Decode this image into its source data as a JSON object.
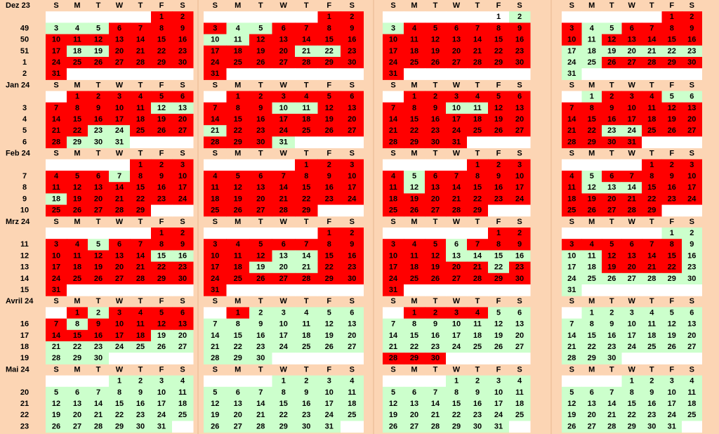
{
  "weekdays": [
    "S",
    "M",
    "T",
    "W",
    "T",
    "F",
    "S"
  ],
  "palette": {
    "r": "#ff0000",
    "g": "#ccffcc",
    "w": "#ffffff"
  },
  "months": [
    {
      "label": "Dez 23",
      "weeks": [
        {
          "week": null,
          "days": [
            null,
            null,
            null,
            null,
            null,
            1,
            2
          ],
          "fills": [
            "wwwwwrr",
            "wwwwwrr",
            "wwwwwwg",
            "wwwwwrr"
          ]
        },
        {
          "week": 49,
          "days": [
            3,
            4,
            5,
            6,
            7,
            8,
            9
          ],
          "fills": [
            "gggrrrr",
            "rggrrrr",
            "grrrrrr",
            "rggrrrr"
          ]
        },
        {
          "week": 50,
          "days": [
            10,
            11,
            12,
            13,
            14,
            15,
            16
          ],
          "fills": [
            "rrrrrrr",
            "ggrrrrr",
            "rrrrrrr",
            "rgrrrrr"
          ]
        },
        {
          "week": 51,
          "days": [
            17,
            18,
            19,
            20,
            21,
            22,
            23
          ],
          "fills": [
            "rggrrrr",
            "rrrrggr",
            "rrrrrrr",
            "ggggggg"
          ]
        },
        {
          "week": 1,
          "days": [
            24,
            25,
            26,
            27,
            28,
            29,
            30
          ],
          "fills": [
            "rrrrrrr",
            "rrrrrrr",
            "rrrrrrr",
            "ggrrrrr"
          ]
        },
        {
          "week": 2,
          "days": [
            31,
            null,
            null,
            null,
            null,
            null,
            null
          ],
          "fills": [
            "rwwwwww",
            "rwwwwww",
            "rwwwwww",
            "gwwwwww"
          ]
        }
      ]
    },
    {
      "label": "Jan 24",
      "weeks": [
        {
          "week": null,
          "days": [
            null,
            1,
            2,
            3,
            4,
            5,
            6
          ],
          "fills": [
            "wrrrrrr",
            "wrrrrrr",
            "wrrrrrr",
            "wgrrrgg"
          ]
        },
        {
          "week": 3,
          "days": [
            7,
            8,
            9,
            10,
            11,
            12,
            13
          ],
          "fills": [
            "rrrrrgg",
            "rrrggrr",
            "rrrggrr",
            "rrrrrrr"
          ]
        },
        {
          "week": 4,
          "days": [
            14,
            15,
            16,
            17,
            18,
            19,
            20
          ],
          "fills": [
            "rrrrrrr",
            "rrrrrrr",
            "rrrrrrr",
            "rrrrrrr"
          ]
        },
        {
          "week": 5,
          "days": [
            21,
            22,
            23,
            24,
            25,
            26,
            27
          ],
          "fills": [
            "rrggrrr",
            "grrrrrr",
            "rrrrrrr",
            "rrggrrr"
          ]
        },
        {
          "week": 6,
          "days": [
            28,
            29,
            30,
            31,
            null,
            null,
            null
          ],
          "fills": [
            "rgggwww",
            "rrrgwww",
            "rrrrwww",
            "rrrrwww"
          ]
        }
      ]
    },
    {
      "label": "Feb 24",
      "weeks": [
        {
          "week": null,
          "days": [
            null,
            null,
            null,
            null,
            1,
            2,
            3
          ],
          "fills": [
            "wwwwrrr",
            "wwwwrrr",
            "wwwwrrr",
            "wwwwrrr"
          ]
        },
        {
          "week": 7,
          "days": [
            4,
            5,
            6,
            7,
            8,
            9,
            10
          ],
          "fills": [
            "rrrgrrr",
            "rrrrrrr",
            "rgrrrrr",
            "rgrrrrr"
          ]
        },
        {
          "week": 8,
          "days": [
            11,
            12,
            13,
            14,
            15,
            16,
            17
          ],
          "fills": [
            "rrrrrrr",
            "rrrrrrr",
            "rgrrrrr",
            "rgggrrr"
          ]
        },
        {
          "week": 9,
          "days": [
            18,
            19,
            20,
            21,
            22,
            23,
            24
          ],
          "fills": [
            "grrrrrr",
            "rrrrrrr",
            "rrrrrrr",
            "rrrrrrr"
          ]
        },
        {
          "week": 10,
          "days": [
            25,
            26,
            27,
            28,
            29,
            null,
            null
          ],
          "fills": [
            "rrrrrww",
            "rrrrrww",
            "rrrrrww",
            "rrrrrww"
          ]
        }
      ]
    },
    {
      "label": "Mrz 24",
      "weeks": [
        {
          "week": null,
          "days": [
            null,
            null,
            null,
            null,
            null,
            1,
            2
          ],
          "fills": [
            "wwwwwrr",
            "wwwwwrr",
            "wwwwwrr",
            "wwwwwgg"
          ]
        },
        {
          "week": 11,
          "days": [
            3,
            4,
            5,
            6,
            7,
            8,
            9
          ],
          "fills": [
            "rrgrrrr",
            "rrrrrrr",
            "rrrgrrr",
            "rrrrrrg"
          ]
        },
        {
          "week": 12,
          "days": [
            10,
            11,
            12,
            13,
            14,
            15,
            16
          ],
          "fills": [
            "rrrrrgg",
            "rrrggrr",
            "rrrgggg",
            "ggrrrrg"
          ]
        },
        {
          "week": 13,
          "days": [
            17,
            18,
            19,
            20,
            21,
            22,
            23
          ],
          "fills": [
            "rrrrrrr",
            "rrgggrr",
            "rrrrrgr",
            "ggrrrrg"
          ]
        },
        {
          "week": 14,
          "days": [
            24,
            25,
            26,
            27,
            28,
            29,
            30
          ],
          "fills": [
            "rrrrrrr",
            "rrrrrrr",
            "rrrrrrr",
            "ggggggg"
          ]
        },
        {
          "week": 15,
          "days": [
            31,
            null,
            null,
            null,
            null,
            null,
            null
          ],
          "fills": [
            "rwwwwww",
            "rwwwwww",
            "rwwwwww",
            "gwwwwww"
          ]
        }
      ]
    },
    {
      "label": "Avril 24",
      "weeks": [
        {
          "week": null,
          "days": [
            null,
            1,
            2,
            3,
            4,
            5,
            6
          ],
          "fills": [
            "wrgrrrr",
            "wrggggg",
            "wrrrrgg",
            "wgggggg"
          ]
        },
        {
          "week": 16,
          "days": [
            7,
            8,
            9,
            10,
            11,
            12,
            13
          ],
          "fills": [
            "rgrrrrr",
            "ggggggg",
            "ggggggg",
            "ggggggg"
          ]
        },
        {
          "week": 17,
          "days": [
            14,
            15,
            16,
            17,
            18,
            19,
            20
          ],
          "fills": [
            "rrrrrgg",
            "ggggggg",
            "ggggggg",
            "ggggggg"
          ]
        },
        {
          "week": 18,
          "days": [
            21,
            22,
            23,
            24,
            25,
            26,
            27
          ],
          "fills": [
            "ggggggg",
            "ggggggg",
            "ggggggg",
            "ggggggg"
          ]
        },
        {
          "week": 19,
          "days": [
            28,
            29,
            30,
            null,
            null,
            null,
            null
          ],
          "fills": [
            "gggwwww",
            "gggwwww",
            "rrrwwww",
            "gggwwww"
          ]
        }
      ]
    },
    {
      "label": "Mai 24",
      "weeks": [
        {
          "week": null,
          "days": [
            null,
            null,
            null,
            1,
            2,
            3,
            4
          ],
          "fills": [
            "wwwgggg",
            "wwwgggg",
            "wwwgggg",
            "wwwgggg"
          ]
        },
        {
          "week": 20,
          "days": [
            5,
            6,
            7,
            8,
            9,
            10,
            11
          ],
          "fills": [
            "ggggggg",
            "ggggggg",
            "ggggggg",
            "ggggggg"
          ]
        },
        {
          "week": 21,
          "days": [
            12,
            13,
            14,
            15,
            16,
            17,
            18
          ],
          "fills": [
            "ggggggg",
            "ggggggg",
            "ggggggg",
            "ggggggg"
          ]
        },
        {
          "week": 22,
          "days": [
            19,
            20,
            21,
            22,
            23,
            24,
            25
          ],
          "fills": [
            "ggggggg",
            "ggggggg",
            "ggggggg",
            "ggggggg"
          ]
        },
        {
          "week": 23,
          "days": [
            26,
            27,
            28,
            29,
            30,
            31,
            null
          ],
          "fills": [
            "ggggggw",
            "ggggggw",
            "ggggggw",
            "ggggggw"
          ]
        }
      ]
    }
  ]
}
